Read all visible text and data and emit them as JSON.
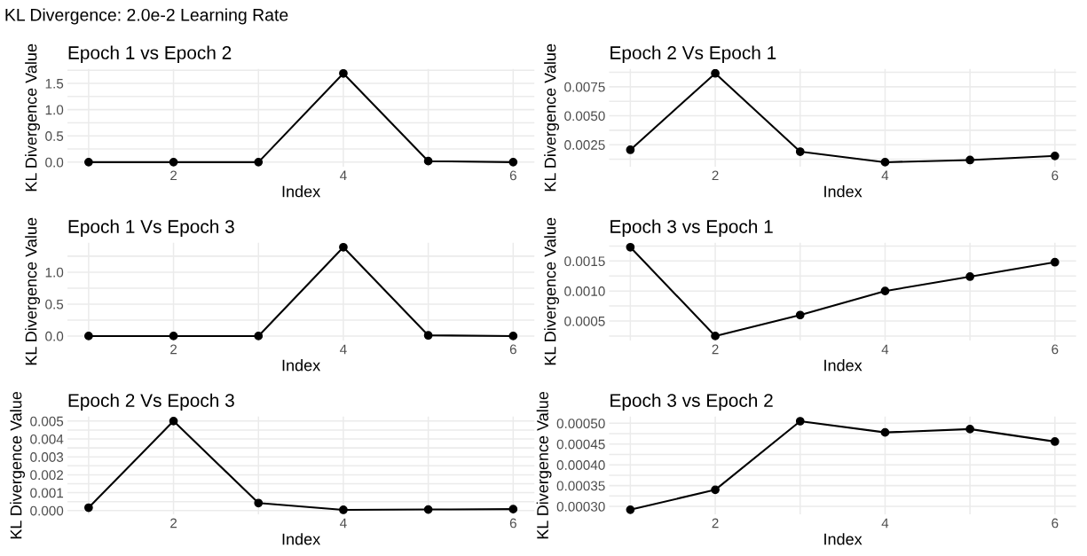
{
  "chart_data": [
    {
      "type": "line",
      "title": "Epoch 1 vs Epoch 2",
      "annotations": [
        "KL Divergence: 2.0e-2 Learning Rate"
      ],
      "xlabel": "Index",
      "ylabel": "KL Divergence Value",
      "x": [
        1,
        2,
        3,
        4,
        5,
        6
      ],
      "series": [
        {
          "color": "#000000",
          "values": [
            0,
            0,
            0,
            1.69,
            0.02,
            0
          ]
        }
      ],
      "marker": "circle",
      "grid": true,
      "xlim": [
        0.75,
        6.25
      ],
      "xticks": [
        {
          "value": 1,
          "label": null
        },
        2,
        {
          "value": 3,
          "label": null
        },
        4,
        {
          "value": 5,
          "label": null
        },
        6
      ],
      "ylim": [
        -0.085,
        1.775
      ],
      "yticks": [
        {
          "value": 0,
          "label": "0.0"
        },
        {
          "value": 0.25,
          "label": null
        },
        {
          "value": 0.5,
          "label": "0.5"
        },
        {
          "value": 0.75,
          "label": null
        },
        {
          "value": 1.0,
          "label": "1.0"
        },
        {
          "value": 1.25,
          "label": null
        },
        {
          "value": 1.5,
          "label": "1.5"
        },
        {
          "value": 1.75,
          "label": null
        }
      ]
    },
    {
      "type": "line",
      "title": "Epoch 2 Vs Epoch 1",
      "xlabel": "Index",
      "ylabel": "KL Divergence Value",
      "x": [
        1,
        2,
        3,
        4,
        5,
        6
      ],
      "series": [
        {
          "color": "#000000",
          "values": [
            0.00206,
            0.00866,
            0.0019,
            0.00099,
            0.00118,
            0.00153
          ]
        }
      ],
      "marker": "circle",
      "grid": true,
      "xlim": [
        0.75,
        6.25
      ],
      "xticks": [
        {
          "value": 1,
          "label": null
        },
        2,
        {
          "value": 3,
          "label": null
        },
        4,
        {
          "value": 5,
          "label": null
        },
        6
      ],
      "ylim": [
        0.00061,
        0.00904
      ],
      "yticks": [
        {
          "value": 0.00125,
          "label": null
        },
        {
          "value": 0.0025,
          "label": "0.0025"
        },
        {
          "value": 0.00375,
          "label": null
        },
        {
          "value": 0.005,
          "label": "0.0050"
        },
        {
          "value": 0.00625,
          "label": null
        },
        {
          "value": 0.0075,
          "label": "0.0075"
        },
        {
          "value": 0.00875,
          "label": null
        }
      ]
    },
    {
      "type": "line",
      "title": "Epoch 1 Vs Epoch 3",
      "xlabel": "Index",
      "ylabel": "KL Divergence Value",
      "x": [
        1,
        2,
        3,
        4,
        5,
        6
      ],
      "series": [
        {
          "color": "#000000",
          "values": [
            0,
            0,
            0,
            1.39,
            0.01,
            0
          ]
        }
      ],
      "marker": "circle",
      "grid": true,
      "xlim": [
        0.75,
        6.25
      ],
      "xticks": [
        {
          "value": 1,
          "label": null
        },
        2,
        {
          "value": 3,
          "label": null
        },
        4,
        {
          "value": 5,
          "label": null
        },
        6
      ],
      "ylim": [
        -0.0695,
        1.4595
      ],
      "yticks": [
        {
          "value": 0,
          "label": "0.0"
        },
        {
          "value": 0.25,
          "label": null
        },
        {
          "value": 0.5,
          "label": "0.5"
        },
        {
          "value": 0.75,
          "label": null
        },
        {
          "value": 1.0,
          "label": "1.0"
        },
        {
          "value": 1.25,
          "label": null
        }
      ]
    },
    {
      "type": "line",
      "title": "Epoch 3 vs Epoch 1",
      "xlabel": "Index",
      "ylabel": "KL Divergence Value",
      "x": [
        1,
        2,
        3,
        4,
        5,
        6
      ],
      "series": [
        {
          "color": "#000000",
          "values": [
            0.00173,
            0.00025,
            0.0006,
            0.001,
            0.00124,
            0.00148
          ]
        }
      ],
      "marker": "circle",
      "grid": true,
      "xlim": [
        0.75,
        6.25
      ],
      "xticks": [
        {
          "value": 1,
          "label": null
        },
        2,
        {
          "value": 3,
          "label": null
        },
        4,
        {
          "value": 5,
          "label": null
        },
        6
      ],
      "ylim": [
        0.000176,
        0.001804
      ],
      "yticks": [
        {
          "value": 0.00025,
          "label": null
        },
        {
          "value": 0.0005,
          "label": "0.0005"
        },
        {
          "value": 0.00075,
          "label": null
        },
        {
          "value": 0.001,
          "label": "0.0010"
        },
        {
          "value": 0.00125,
          "label": null
        },
        {
          "value": 0.0015,
          "label": "0.0015"
        },
        {
          "value": 0.00175,
          "label": null
        }
      ]
    },
    {
      "type": "line",
      "title": "Epoch 2 Vs Epoch 3",
      "xlabel": "Index",
      "ylabel": "KL Divergence Value",
      "x": [
        1,
        2,
        3,
        4,
        5,
        6
      ],
      "series": [
        {
          "color": "#000000",
          "values": [
            0.00016,
            0.005,
            0.00042,
            4e-05,
            6e-05,
            8e-05
          ]
        }
      ],
      "marker": "circle",
      "grid": true,
      "xlim": [
        0.75,
        6.25
      ],
      "xticks": [
        {
          "value": 1,
          "label": null
        },
        2,
        {
          "value": 3,
          "label": null
        },
        4,
        {
          "value": 5,
          "label": null
        },
        6
      ],
      "ylim": [
        -0.000208,
        0.005248
      ],
      "yticks": [
        {
          "value": 0,
          "label": "0.000"
        },
        {
          "value": 0.0005,
          "label": null
        },
        {
          "value": 0.001,
          "label": "0.001"
        },
        {
          "value": 0.0015,
          "label": null
        },
        {
          "value": 0.002,
          "label": "0.002"
        },
        {
          "value": 0.0025,
          "label": null
        },
        {
          "value": 0.003,
          "label": "0.003"
        },
        {
          "value": 0.0035,
          "label": null
        },
        {
          "value": 0.004,
          "label": "0.004"
        },
        {
          "value": 0.0045,
          "label": null
        },
        {
          "value": 0.005,
          "label": "0.005"
        }
      ]
    },
    {
      "type": "line",
      "title": "Epoch 3 vs Epoch 2",
      "xlabel": "Index",
      "ylabel": "KL Divergence Value",
      "x": [
        1,
        2,
        3,
        4,
        5,
        6
      ],
      "series": [
        {
          "color": "#000000",
          "values": [
            0.000292,
            0.00034,
            0.000505,
            0.000478,
            0.000486,
            0.000456
          ]
        }
      ],
      "marker": "circle",
      "grid": true,
      "xlim": [
        0.75,
        6.25
      ],
      "xticks": [
        {
          "value": 1,
          "label": null
        },
        2,
        {
          "value": 3,
          "label": null
        },
        4,
        {
          "value": 5,
          "label": null
        },
        6
      ],
      "ylim": [
        0.000281,
        0.000516
      ],
      "yticks": [
        {
          "value": 0.0003,
          "label": "0.00030"
        },
        {
          "value": 0.000325,
          "label": null
        },
        {
          "value": 0.00035,
          "label": "0.00035"
        },
        {
          "value": 0.000375,
          "label": null
        },
        {
          "value": 0.0004,
          "label": "0.00040"
        },
        {
          "value": 0.000425,
          "label": null
        },
        {
          "value": 0.00045,
          "label": "0.00045"
        },
        {
          "value": 0.000475,
          "label": null
        },
        {
          "value": 0.0005,
          "label": "0.00050"
        }
      ]
    }
  ]
}
